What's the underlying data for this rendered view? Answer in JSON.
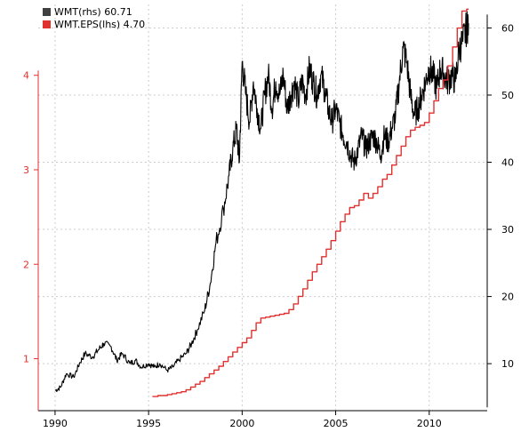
{
  "chart_data": {
    "type": "line",
    "title": "",
    "xlabel": "",
    "ylabel": "",
    "grid": true,
    "legend_position": "top-left",
    "xlim": [
      1989.1,
      2013.1
    ],
    "ylim_left": [
      0.45,
      4.75
    ],
    "ylim_right": [
      3,
      63.5
    ],
    "x_ticks": [
      1990,
      1995,
      2000,
      2005,
      2010
    ],
    "x_tick_labels": [
      "1990",
      "1995",
      "2000",
      "2005",
      "2010"
    ],
    "y_left_ticks": [
      1,
      2,
      3,
      4
    ],
    "y_left_tick_labels": [
      "1",
      "2",
      "3",
      "4"
    ],
    "y_right_ticks": [
      10,
      20,
      30,
      40,
      50,
      60
    ],
    "y_right_tick_labels": [
      "10",
      "20",
      "30",
      "40",
      "50",
      "60"
    ],
    "legend": [
      {
        "label": "WMT(rhs) 60.71",
        "color": "#404040"
      },
      {
        "label": "WMT.EPS(lhs)  4.70",
        "color": "#e0312f"
      }
    ],
    "series": [
      {
        "name": "WMT(rhs) 60.71",
        "axis": "right",
        "color": "#000000",
        "x": [
          1990.0,
          1990.3,
          1990.6,
          1991.0,
          1991.3,
          1991.6,
          1992.0,
          1992.3,
          1992.6,
          1993.0,
          1993.3,
          1993.6,
          1994.0,
          1994.3,
          1994.6,
          1995.0,
          1995.3,
          1995.6,
          1996.0,
          1996.3,
          1996.6,
          1997.0,
          1997.3,
          1997.6,
          1998.0,
          1998.3,
          1998.6,
          1999.0,
          1999.3,
          1999.5,
          1999.7,
          1999.85,
          2000.0,
          2000.2,
          2000.4,
          2000.6,
          2000.8,
          2001.0,
          2001.2,
          2001.4,
          2001.6,
          2001.8,
          2002.0,
          2002.2,
          2002.4,
          2002.6,
          2002.8,
          2003.0,
          2003.2,
          2003.4,
          2003.6,
          2003.8,
          2004.0,
          2004.2,
          2004.4,
          2004.6,
          2004.8,
          2005.0,
          2005.2,
          2005.4,
          2005.6,
          2005.8,
          2006.0,
          2006.2,
          2006.4,
          2006.6,
          2006.8,
          2007.0,
          2007.2,
          2007.4,
          2007.6,
          2007.8,
          2008.0,
          2008.2,
          2008.4,
          2008.6,
          2008.8,
          2009.0,
          2009.2,
          2009.4,
          2009.6,
          2009.8,
          2010.0,
          2010.2,
          2010.4,
          2010.6,
          2010.8,
          2011.0,
          2011.2,
          2011.4,
          2011.6,
          2011.8,
          2012.0,
          2012.1
        ],
        "values": [
          6.0,
          6.5,
          8.5,
          8.0,
          10.0,
          11.5,
          11.0,
          12.0,
          13.0,
          12.5,
          10.5,
          11.5,
          10.0,
          10.5,
          9.5,
          10.0,
          9.5,
          10.0,
          9.0,
          9.5,
          10.5,
          11.5,
          13.0,
          15.0,
          18.0,
          22.0,
          28.0,
          33.0,
          38.0,
          42.0,
          45.0,
          40.0,
          55.0,
          50.0,
          46.0,
          52.0,
          48.0,
          45.0,
          50.0,
          53.0,
          48.0,
          52.0,
          50.0,
          53.0,
          48.0,
          50.0,
          52.0,
          49.0,
          52.0,
          50.0,
          54.0,
          52.0,
          50.0,
          53.0,
          51.0,
          48.0,
          46.0,
          48.0,
          46.0,
          44.0,
          43.0,
          41.0,
          40.0,
          42.0,
          44.0,
          42.0,
          43.0,
          44.0,
          43.0,
          41.0,
          44.0,
          43.0,
          45.0,
          47.0,
          52.0,
          57.0,
          55.0,
          50.0,
          47.0,
          48.0,
          50.0,
          52.0,
          54.0,
          53.0,
          51.0,
          54.0,
          53.0,
          52.0,
          53.0,
          52.0,
          57.0,
          58.0,
          60.0,
          60.7
        ]
      },
      {
        "name": "WMT.EPS(lhs)  4.70",
        "axis": "left",
        "color": "#e0312f",
        "step": true,
        "x": [
          1995.2,
          1995.5,
          1995.8,
          1996.0,
          1996.25,
          1996.5,
          1996.75,
          1997.0,
          1997.25,
          1997.5,
          1997.75,
          1998.0,
          1998.25,
          1998.5,
          1998.75,
          1999.0,
          1999.25,
          1999.5,
          1999.75,
          2000.0,
          2000.25,
          2000.5,
          2000.75,
          2001.0,
          2001.25,
          2001.5,
          2001.75,
          2002.0,
          2002.25,
          2002.5,
          2002.75,
          2003.0,
          2003.25,
          2003.5,
          2003.75,
          2004.0,
          2004.25,
          2004.5,
          2004.75,
          2005.0,
          2005.25,
          2005.5,
          2005.75,
          2006.0,
          2006.25,
          2006.5,
          2006.75,
          2007.0,
          2007.25,
          2007.5,
          2007.75,
          2008.0,
          2008.25,
          2008.5,
          2008.75,
          2009.0,
          2009.25,
          2009.5,
          2009.75,
          2010.0,
          2010.25,
          2010.5,
          2010.75,
          2011.0,
          2011.25,
          2011.5,
          2011.75,
          2012.0,
          2012.1
        ],
        "values": [
          0.6,
          0.61,
          0.61,
          0.62,
          0.63,
          0.64,
          0.65,
          0.67,
          0.7,
          0.73,
          0.76,
          0.8,
          0.84,
          0.88,
          0.92,
          0.97,
          1.02,
          1.07,
          1.12,
          1.17,
          1.22,
          1.3,
          1.38,
          1.43,
          1.44,
          1.45,
          1.46,
          1.47,
          1.48,
          1.52,
          1.58,
          1.66,
          1.74,
          1.83,
          1.92,
          2.0,
          2.08,
          2.16,
          2.25,
          2.35,
          2.45,
          2.53,
          2.6,
          2.62,
          2.68,
          2.75,
          2.7,
          2.75,
          2.82,
          2.9,
          2.95,
          3.05,
          3.15,
          3.25,
          3.35,
          3.42,
          3.45,
          3.47,
          3.5,
          3.6,
          3.73,
          3.86,
          3.95,
          4.1,
          4.3,
          4.5,
          4.68,
          4.7,
          4.7
        ]
      }
    ]
  }
}
